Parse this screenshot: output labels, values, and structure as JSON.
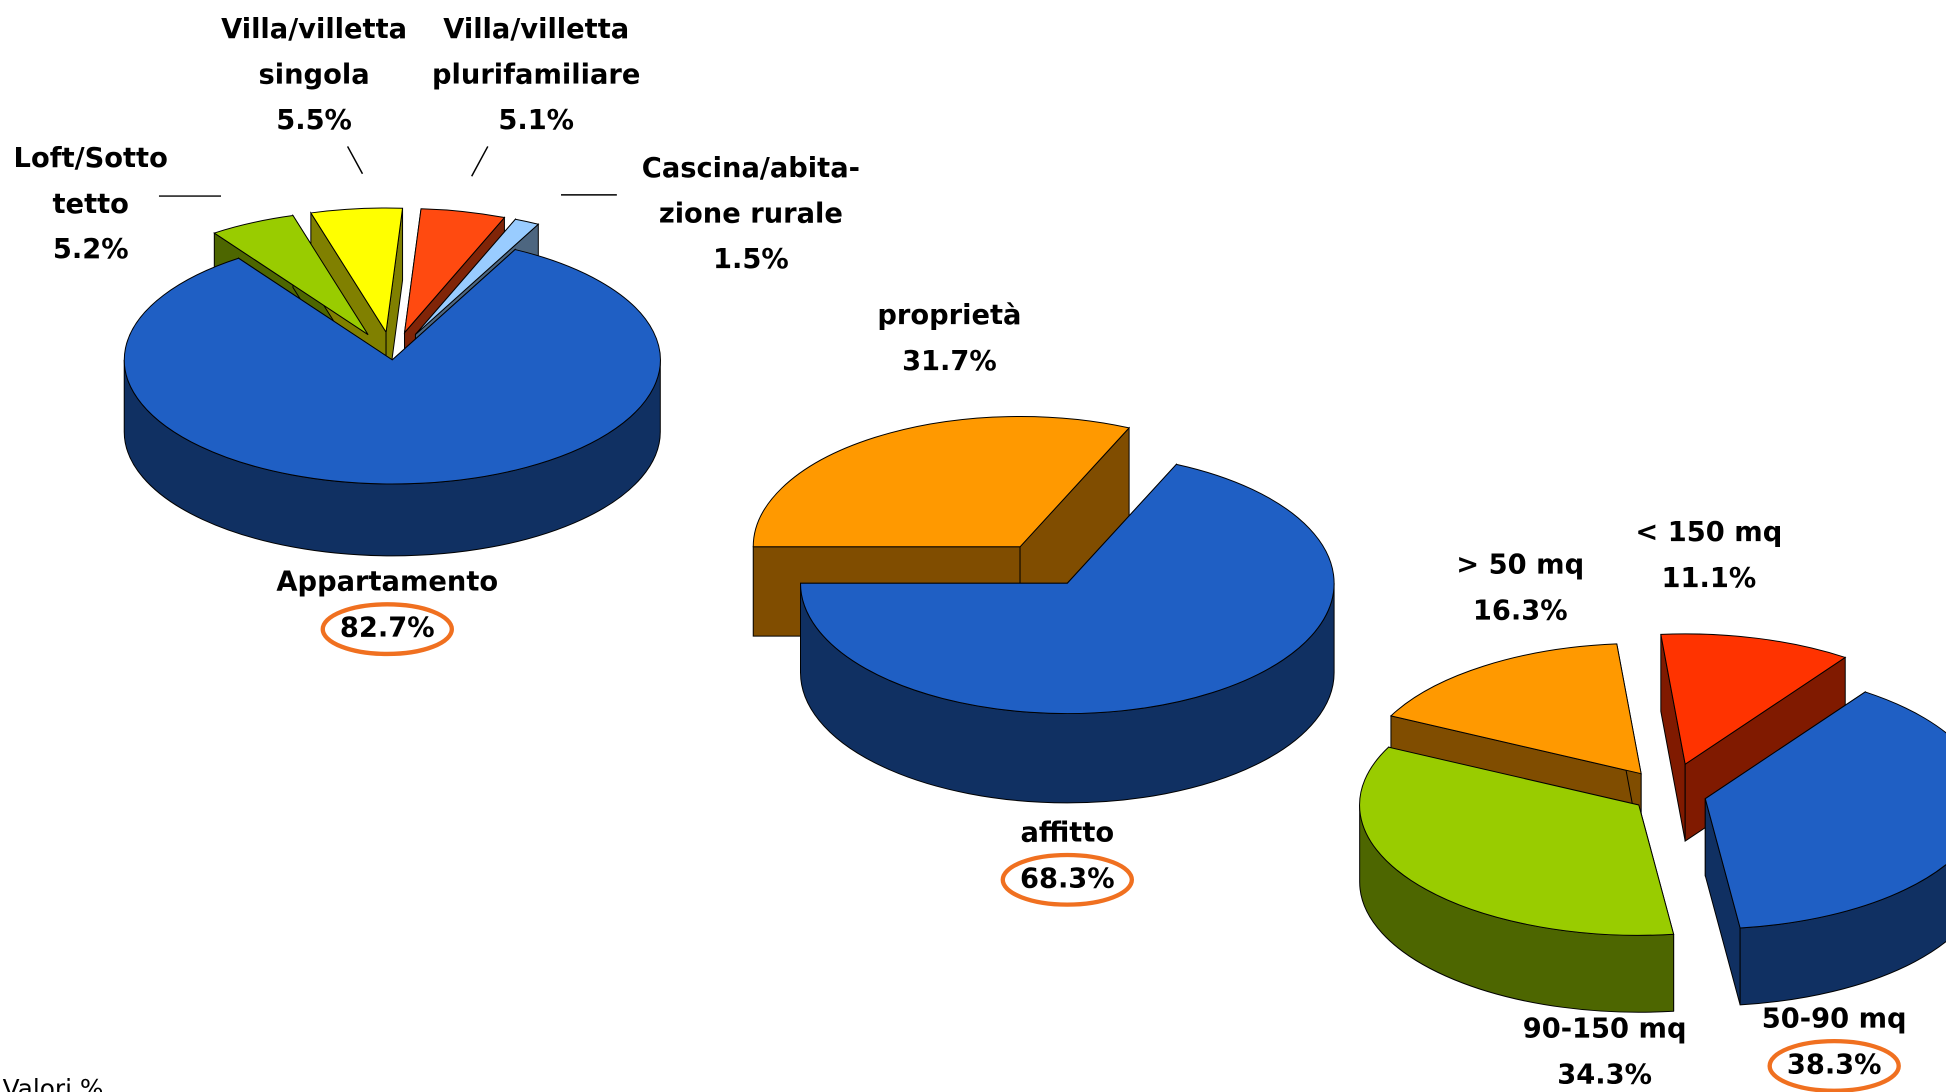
{
  "chart_data": [
    {
      "type": "pie",
      "categories": [
        "Loft/Sotto\ntetto",
        "Villa/villetta\nsingola",
        "Villa/villetta\nplurifamiliare",
        "Cascina/abita-\nzione rurale",
        "Appartamento"
      ],
      "values": [
        5.2,
        5.5,
        5.1,
        1.5,
        82.7
      ],
      "value_labels": [
        "5.2%",
        "5.5%",
        "5.1%",
        "1.5%",
        "82.7%"
      ],
      "colors": [
        "#99cc00",
        "#ffff00",
        "#ff4a10",
        "#99ccff",
        "#1f5fc4"
      ],
      "highlight": 4
    },
    {
      "type": "pie",
      "categories": [
        "proprietà",
        "affitto"
      ],
      "values": [
        31.7,
        68.3
      ],
      "value_labels": [
        "31.7%",
        "68.3%"
      ],
      "colors": [
        "#ff9900",
        "#1f5fc4"
      ],
      "highlight": 1
    },
    {
      "type": "pie",
      "categories": [
        "< 150 mq",
        "50-90 mq",
        "90-150 mq",
        "> 50 mq"
      ],
      "values": [
        11.1,
        38.3,
        34.3,
        16.3
      ],
      "value_labels": [
        "11.1%",
        "38.3%",
        "34.3%",
        "16.3%"
      ],
      "colors": [
        "#ff3300",
        "#1f5fc4",
        "#99cc00",
        "#ff9900"
      ],
      "highlight": 1
    }
  ],
  "note": "Valori %"
}
